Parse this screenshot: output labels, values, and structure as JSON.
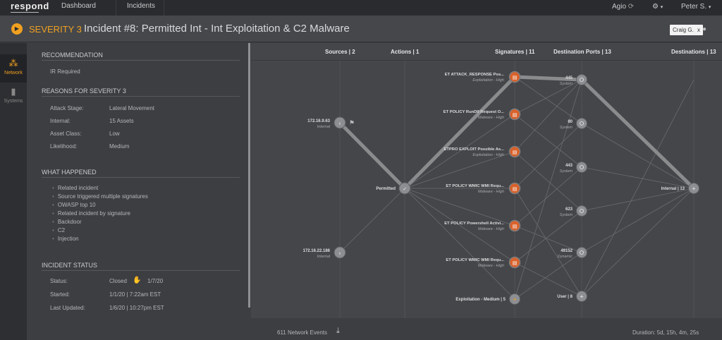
{
  "topbar": {
    "brand": "respond",
    "dashboard": "Dashboard",
    "incidents": "Incidents",
    "tenant": "Agio",
    "user": "Peter S."
  },
  "header": {
    "severity": "SEVERITY 3",
    "title": "Incident #8: Permitted Int - Int Exploitation & C2 Malware",
    "assignee": "Craig G.",
    "assignee_close": "x"
  },
  "nav": [
    {
      "label": "Network"
    },
    {
      "label": "Systems"
    }
  ],
  "left": {
    "recommendation_title": "RECOMMENDATION",
    "recommendation": "IR Required",
    "reasons_title": "REASONS FOR SEVERITY 3",
    "reasons": [
      {
        "label": "Attack Stage:",
        "value": "Lateral Movement"
      },
      {
        "label": "Internal:",
        "value": "15 Assets"
      },
      {
        "label": "Asset Class:",
        "value": "Low"
      },
      {
        "label": "Likelihood:",
        "value": "Medium"
      }
    ],
    "what_title": "WHAT HAPPENED",
    "what": [
      "Related incident",
      "Source triggered multiple signatures",
      "OWASP top 10",
      "Related incident by signature",
      "Backdoor",
      "C2",
      "Injection"
    ],
    "status_title": "INCIDENT STATUS",
    "status": [
      {
        "label": "Status:",
        "value": "Closed",
        "extra": "1/7/20"
      },
      {
        "label": "Started:",
        "value": "1/1/20 | 7:22am EST"
      },
      {
        "label": "Last Updated:",
        "value": "1/6/20 | 10:27pm EST"
      }
    ]
  },
  "graph": {
    "headers": {
      "sources": "Sources | 2",
      "actions": "Actions | 1",
      "signatures": "Signatures | 11",
      "ports": "Destination Ports | 13",
      "destinations": "Destinations | 13"
    },
    "sources": [
      {
        "name": "172.16.9.63",
        "sub": "Internal"
      },
      {
        "name": "172.16.22.186",
        "sub": "Internal"
      }
    ],
    "action": "Permitted",
    "signatures": [
      {
        "name": "ET ATTACK_RESPONSE Pos...",
        "sub": "Exploitation - High"
      },
      {
        "name": "ET POLICY RunDll Request O...",
        "sub": "Malware - High"
      },
      {
        "name": "ETPRO EXPLOIT Possible As...",
        "sub": "Exploitation - High"
      },
      {
        "name": "ET POLICY WMIC WMI Requ...",
        "sub": "Malware - High"
      },
      {
        "name": "ET POLICY Powershell Activi...",
        "sub": "Malware - High"
      },
      {
        "name": "ET POLICY WMIC WMI Requ...",
        "sub": "Malware - High"
      },
      {
        "name": "Exploitation - Medium | 5",
        "sub": ""
      }
    ],
    "ports": [
      {
        "name": "445",
        "sub": "System"
      },
      {
        "name": "80",
        "sub": "System"
      },
      {
        "name": "443",
        "sub": "System"
      },
      {
        "name": "623",
        "sub": "System"
      },
      {
        "name": "49152",
        "sub": "Dynamic"
      },
      {
        "name": "User | 8",
        "sub": ""
      }
    ],
    "destination": "Internal | 13"
  },
  "footer": {
    "events": "611 Network Events",
    "duration": "Duration: 5d, 15h, 4m, 25s"
  },
  "colors": {
    "accent": "#f0a020",
    "sig_node": "#d9622b",
    "node": "#8c8e92"
  }
}
